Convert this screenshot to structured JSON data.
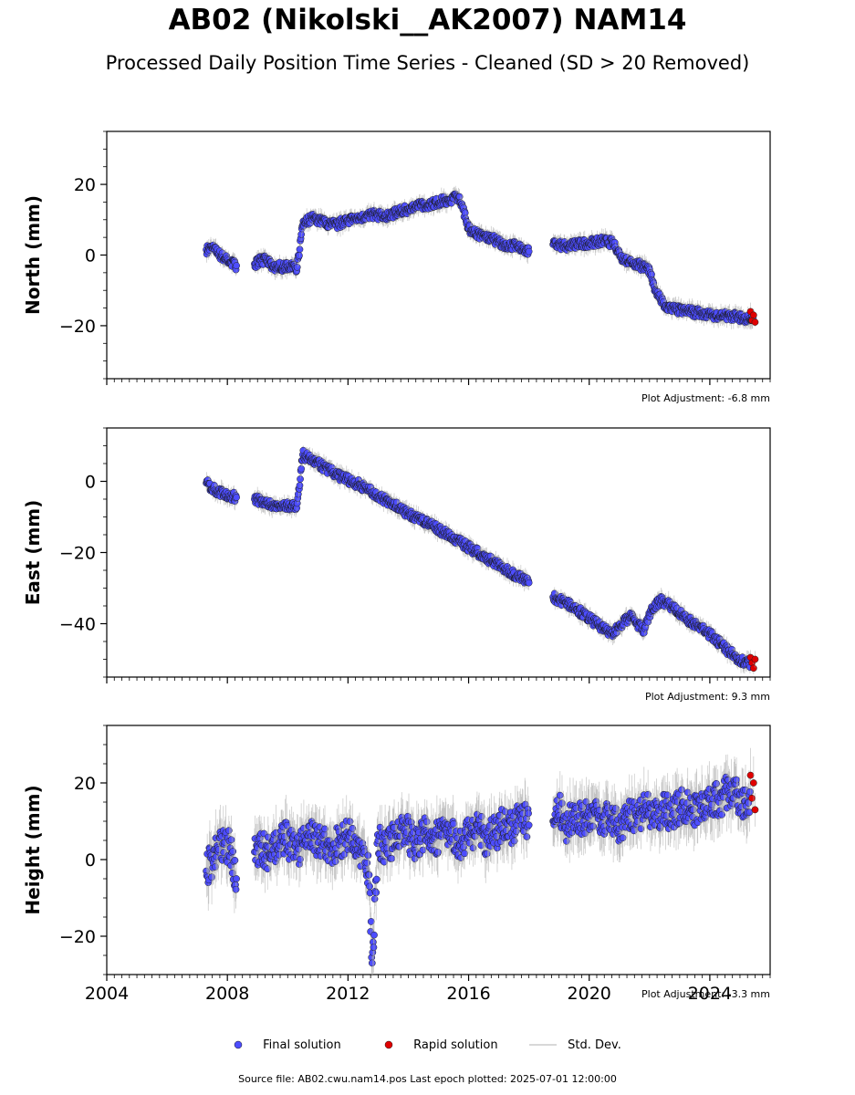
{
  "title": "AB02 (Nikolski__AK2007) NAM14",
  "subtitle": "Processed Daily Position Time Series - Cleaned (SD > 20 Removed)",
  "legend": {
    "final": "Final solution",
    "rapid": "Rapid solution",
    "std": "Std. Dev."
  },
  "footer": "Source file: AB02.cwu.nam14.pos  Last epoch plotted: 2025-07-01 12:00:00",
  "colors": {
    "final": "#4d4dff",
    "rapid": "#e00000",
    "std": "#aaaaaa"
  },
  "chart_data": [
    {
      "type": "scatter",
      "ylabel": "North (mm)",
      "xlim": [
        2004,
        2026
      ],
      "ylim": [
        -35,
        35
      ],
      "yticks": [
        -20,
        0,
        20
      ],
      "xticks": [
        2004,
        2008,
        2012,
        2016,
        2020,
        2024
      ],
      "show_xtick_labels": false,
      "adjustment": "Plot Adjustment: -6.8 mm",
      "series": [
        {
          "role": "final",
          "x": [
            2007.3,
            2007.5,
            2007.7,
            2007.9,
            2008.1,
            2008.3,
            2008.9,
            2009.1,
            2009.3,
            2009.5,
            2009.7,
            2009.9,
            2010.1,
            2010.3,
            2010.5,
            2010.6,
            2010.8,
            2011.0,
            2011.3,
            2011.6,
            2012.0,
            2012.4,
            2012.8,
            2013.2,
            2013.6,
            2014.0,
            2014.4,
            2014.8,
            2015.2,
            2015.5,
            2015.7,
            2016.0,
            2016.4,
            2016.8,
            2017.2,
            2017.6,
            2018.0,
            2018.8,
            2019.2,
            2019.6,
            2020.0,
            2020.4,
            2020.8,
            2021.1,
            2021.4,
            2021.7,
            2022.0,
            2022.2,
            2022.5,
            2022.9,
            2023.3,
            2023.7,
            2024.1,
            2024.5,
            2024.9,
            2025.3
          ],
          "y": [
            1.5,
            2.0,
            0.5,
            -1.0,
            -2.0,
            -3.0,
            -2.5,
            -1.5,
            -1.5,
            -3.5,
            -3.0,
            -3.5,
            -3.0,
            -4.5,
            8.5,
            9.5,
            10.5,
            10.0,
            9.0,
            8.5,
            10.0,
            10.5,
            11.5,
            11.0,
            12.0,
            13.0,
            14.0,
            14.5,
            15.5,
            16.0,
            16.5,
            7.5,
            5.5,
            4.5,
            3.0,
            2.5,
            1.0,
            3.0,
            2.5,
            3.0,
            3.5,
            4.0,
            3.5,
            -1.0,
            -2.0,
            -3.0,
            -4.0,
            -10.0,
            -14.5,
            -15.5,
            -16.0,
            -16.5,
            -17.0,
            -17.0,
            -17.5,
            -18.0
          ]
        },
        {
          "role": "rapid",
          "x": [
            2025.35,
            2025.4,
            2025.45,
            2025.5
          ],
          "y": [
            -16.0,
            -18.5,
            -17.0,
            -19.0
          ]
        }
      ]
    },
    {
      "type": "scatter",
      "ylabel": "East (mm)",
      "xlim": [
        2004,
        2026
      ],
      "ylim": [
        -55,
        15
      ],
      "yticks": [
        -40,
        -20,
        0
      ],
      "xticks": [
        2004,
        2008,
        2012,
        2016,
        2020,
        2024
      ],
      "show_xtick_labels": false,
      "adjustment": "Plot Adjustment: 9.3 mm",
      "series": [
        {
          "role": "final",
          "x": [
            2007.3,
            2007.5,
            2007.7,
            2007.9,
            2008.1,
            2008.3,
            2008.9,
            2009.1,
            2009.3,
            2009.5,
            2009.7,
            2009.9,
            2010.1,
            2010.3,
            2010.5,
            2010.6,
            2010.8,
            2011.0,
            2011.3,
            2011.6,
            2012.0,
            2012.4,
            2012.8,
            2013.2,
            2013.6,
            2014.0,
            2014.4,
            2014.8,
            2015.2,
            2015.6,
            2016.0,
            2016.4,
            2016.8,
            2017.2,
            2017.6,
            2018.0,
            2018.8,
            2019.2,
            2019.6,
            2020.0,
            2020.4,
            2020.8,
            2021.0,
            2021.4,
            2021.8,
            2022.1,
            2022.4,
            2022.8,
            2023.2,
            2023.6,
            2024.0,
            2024.4,
            2024.8,
            2025.2
          ],
          "y": [
            -0.5,
            -2.0,
            -3.0,
            -3.5,
            -4.0,
            -4.5,
            -5.0,
            -5.5,
            -6.0,
            -6.5,
            -7.0,
            -7.0,
            -7.0,
            -7.5,
            7.5,
            7.0,
            6.0,
            5.0,
            3.5,
            2.0,
            0.5,
            -1.0,
            -3.0,
            -5.0,
            -7.0,
            -9.0,
            -10.5,
            -12.5,
            -14.5,
            -16.5,
            -18.5,
            -20.5,
            -22.5,
            -24.5,
            -26.5,
            -28.5,
            -32.5,
            -34.0,
            -36.0,
            -38.5,
            -41.0,
            -43.0,
            -40.5,
            -38.0,
            -42.0,
            -35.5,
            -33.5,
            -35.5,
            -38.5,
            -40.5,
            -43.0,
            -46.0,
            -49.0,
            -51.0
          ]
        },
        {
          "role": "rapid",
          "x": [
            2025.35,
            2025.4,
            2025.45,
            2025.5
          ],
          "y": [
            -49.5,
            -51.0,
            -52.5,
            -50.0
          ]
        }
      ]
    },
    {
      "type": "scatter",
      "ylabel": "Height (mm)",
      "xlim": [
        2004,
        2026
      ],
      "ylim": [
        -30,
        35
      ],
      "yticks": [
        -20,
        0,
        20
      ],
      "xticks": [
        2004,
        2008,
        2012,
        2016,
        2020,
        2024
      ],
      "show_xtick_labels": true,
      "adjustment": "Plot Adjustment: -3.3 mm",
      "series": [
        {
          "role": "final",
          "x": [
            2007.3,
            2007.5,
            2007.7,
            2007.9,
            2008.1,
            2008.3,
            2008.9,
            2009.1,
            2009.3,
            2009.5,
            2009.7,
            2009.9,
            2010.1,
            2010.3,
            2010.6,
            2010.9,
            2011.2,
            2011.5,
            2011.8,
            2012.1,
            2012.4,
            2012.7,
            2012.8,
            2013.0,
            2013.3,
            2013.6,
            2013.9,
            2014.2,
            2014.5,
            2014.8,
            2015.1,
            2015.4,
            2015.7,
            2016.0,
            2016.3,
            2016.6,
            2016.9,
            2017.2,
            2017.5,
            2017.8,
            2018.0,
            2018.8,
            2019.0,
            2019.2,
            2019.5,
            2019.8,
            2020.1,
            2020.4,
            2020.7,
            2021.0,
            2021.3,
            2021.6,
            2021.9,
            2022.2,
            2022.5,
            2022.8,
            2023.1,
            2023.4,
            2023.7,
            2024.0,
            2024.3,
            2024.6,
            2024.9,
            2025.2
          ],
          "y": [
            -3,
            0,
            2,
            4,
            3,
            -5,
            2,
            4,
            1,
            5,
            3,
            6,
            4,
            2,
            5,
            6,
            4,
            3,
            5,
            7,
            2,
            -4,
            -27,
            5,
            3,
            6,
            8,
            4,
            7,
            5,
            6,
            8,
            4,
            6,
            9,
            5,
            7,
            10,
            8,
            12,
            9,
            10,
            14,
            8,
            12,
            10,
            13,
            9,
            11,
            8,
            12,
            10,
            14,
            11,
            13,
            12,
            15,
            13,
            14,
            16,
            15,
            18,
            17,
            14
          ]
        },
        {
          "role": "rapid",
          "x": [
            2025.35,
            2025.4,
            2025.45,
            2025.5
          ],
          "y": [
            22,
            16,
            20,
            13
          ]
        }
      ]
    }
  ]
}
